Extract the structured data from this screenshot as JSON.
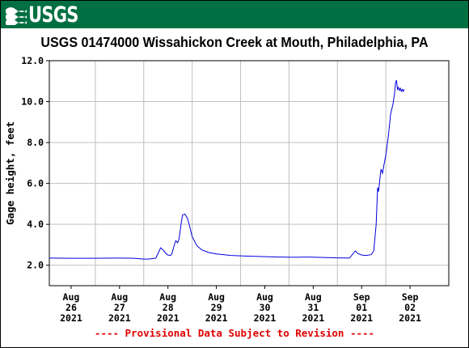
{
  "header": {
    "logo_text": "USGS",
    "banner_color": "#006f41"
  },
  "chart_data": {
    "type": "line",
    "title": "USGS 01474000 Wissahickon Creek at Mouth, Philadelphia, PA",
    "xlabel": "",
    "ylabel": "Gage height, feet",
    "ylim": [
      1.0,
      12.0
    ],
    "yticks": [
      "2.0",
      "4.0",
      "6.0",
      "8.0",
      "10.0",
      "12.0"
    ],
    "ytick_values": [
      2,
      4,
      6,
      8,
      10,
      12
    ],
    "xlim": [
      -0.45,
      7.8
    ],
    "xticks": [
      {
        "pos": 0,
        "lines": [
          "Aug",
          "26",
          "2021"
        ]
      },
      {
        "pos": 1,
        "lines": [
          "Aug",
          "27",
          "2021"
        ]
      },
      {
        "pos": 2,
        "lines": [
          "Aug",
          "28",
          "2021"
        ]
      },
      {
        "pos": 3,
        "lines": [
          "Aug",
          "29",
          "2021"
        ]
      },
      {
        "pos": 4,
        "lines": [
          "Aug",
          "30",
          "2021"
        ]
      },
      {
        "pos": 5,
        "lines": [
          "Aug",
          "31",
          "2021"
        ]
      },
      {
        "pos": 6,
        "lines": [
          "Sep",
          "01",
          "2021"
        ]
      },
      {
        "pos": 7,
        "lines": [
          "Sep",
          "02",
          "2021"
        ]
      }
    ],
    "grid": true,
    "line_color": "#0000dd",
    "series": [
      {
        "x": [
          -0.45,
          0.0,
          0.5,
          1.0,
          1.3,
          1.5,
          1.6,
          1.7,
          1.75,
          1.8,
          1.85,
          1.9,
          1.95,
          2.0,
          2.05,
          2.08,
          2.12,
          2.16,
          2.2,
          2.23,
          2.27,
          2.3,
          2.35,
          2.4,
          2.45,
          2.5,
          2.6,
          2.7,
          2.85,
          3.0,
          3.3,
          3.6,
          4.0,
          4.3,
          4.6,
          4.9,
          5.2,
          5.5,
          5.75,
          5.82,
          5.87,
          5.92,
          6.0,
          6.1,
          6.2,
          6.25,
          6.3,
          6.33,
          6.35,
          6.38,
          6.4,
          6.43,
          6.46,
          6.5,
          6.55,
          6.6,
          6.65,
          6.68,
          6.7,
          6.72,
          6.74,
          6.76,
          6.78,
          6.8,
          6.82,
          6.84,
          6.86,
          6.88
        ],
        "y": [
          2.35,
          2.34,
          2.34,
          2.35,
          2.34,
          2.3,
          2.3,
          2.33,
          2.35,
          2.6,
          2.85,
          2.75,
          2.6,
          2.5,
          2.48,
          2.55,
          2.9,
          3.2,
          3.1,
          3.3,
          4.0,
          4.45,
          4.5,
          4.3,
          3.9,
          3.4,
          2.95,
          2.75,
          2.62,
          2.55,
          2.48,
          2.45,
          2.42,
          2.4,
          2.39,
          2.4,
          2.38,
          2.36,
          2.35,
          2.55,
          2.7,
          2.58,
          2.5,
          2.48,
          2.52,
          2.7,
          4.0,
          5.8,
          5.6,
          6.3,
          6.7,
          6.5,
          6.9,
          7.4,
          8.3,
          9.4,
          9.9,
          10.4,
          10.9,
          11.05,
          10.6,
          10.7,
          10.55,
          10.65,
          10.5,
          10.6,
          10.5,
          10.6
        ]
      }
    ]
  },
  "footer": {
    "provisional_text": "---- Provisional Data Subject to Revision ----",
    "provisional_color": "#e00000"
  }
}
